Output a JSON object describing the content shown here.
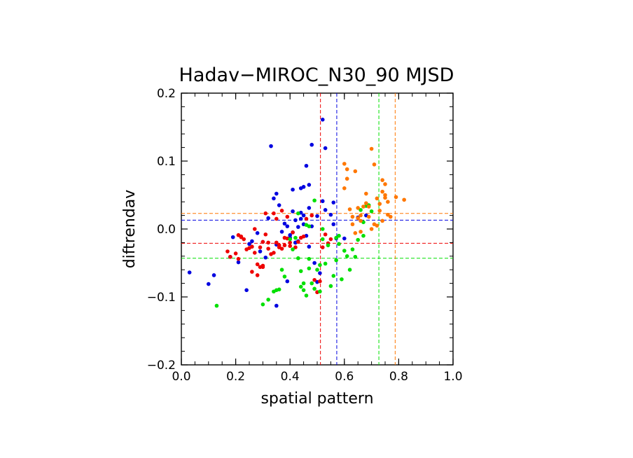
{
  "chart_data": {
    "type": "scatter",
    "title": "Hadav−MIROC_N30_90 MJSD",
    "xlabel": "spatial pattern",
    "ylabel": "diftrendav",
    "xlim": [
      0.0,
      1.0
    ],
    "ylim": [
      -0.2,
      0.2
    ],
    "xticks": [
      0.0,
      0.2,
      0.4,
      0.6,
      0.8,
      1.0
    ],
    "xtick_labels": [
      "0.0",
      "0.2",
      "0.4",
      "0.6",
      "0.8",
      "1.0"
    ],
    "yticks": [
      -0.2,
      -0.1,
      0.0,
      0.1,
      0.2
    ],
    "ytick_labels": [
      "−0.2",
      "−0.1",
      "0.0",
      "0.1",
      "0.2"
    ],
    "grid": false,
    "series": [
      {
        "color": "#0000e0",
        "mean_x": 0.572,
        "mean_y": 0.013,
        "points": [
          [
            0.03,
            -0.064
          ],
          [
            0.1,
            -0.081
          ],
          [
            0.12,
            -0.068
          ],
          [
            0.18,
            -0.041
          ],
          [
            0.19,
            -0.012
          ],
          [
            0.21,
            -0.049
          ],
          [
            0.24,
            -0.09
          ],
          [
            0.25,
            -0.022
          ],
          [
            0.26,
            -0.018
          ],
          [
            0.28,
            -0.006
          ],
          [
            0.29,
            -0.033
          ],
          [
            0.3,
            -0.019
          ],
          [
            0.31,
            -0.042
          ],
          [
            0.32,
            0.016
          ],
          [
            0.33,
            0.122
          ],
          [
            0.34,
            0.045
          ],
          [
            0.35,
            -0.023
          ],
          [
            0.35,
            0.052
          ],
          [
            0.35,
            -0.113
          ],
          [
            0.36,
            0.035
          ],
          [
            0.37,
            -0.004
          ],
          [
            0.38,
            0.008
          ],
          [
            0.39,
            0.004
          ],
          [
            0.39,
            -0.077
          ],
          [
            0.4,
            -0.009
          ],
          [
            0.4,
            -0.013
          ],
          [
            0.41,
            0.026
          ],
          [
            0.41,
            0.058
          ],
          [
            0.41,
            -0.005
          ],
          [
            0.42,
            0.013
          ],
          [
            0.42,
            -0.02
          ],
          [
            0.42,
            -0.02
          ],
          [
            0.43,
            0.003
          ],
          [
            0.43,
            -0.018
          ],
          [
            0.44,
            0.015
          ],
          [
            0.44,
            0.06
          ],
          [
            0.44,
            0.024
          ],
          [
            0.45,
            0.02
          ],
          [
            0.45,
            0.007
          ],
          [
            0.45,
            0.062
          ],
          [
            0.46,
            0.093
          ],
          [
            0.46,
            -0.01
          ],
          [
            0.47,
            0.065
          ],
          [
            0.47,
            0.031
          ],
          [
            0.47,
            -0.026
          ],
          [
            0.48,
            0.124
          ],
          [
            0.48,
            0.004
          ],
          [
            0.49,
            -0.05
          ],
          [
            0.5,
            -0.078
          ],
          [
            0.5,
            0.019
          ],
          [
            0.51,
            -0.065
          ],
          [
            0.52,
            0.041
          ],
          [
            0.52,
            0.161
          ],
          [
            0.53,
            0.119
          ],
          [
            0.53,
            0.028
          ],
          [
            0.55,
            0.021
          ],
          [
            0.56,
            0.007
          ],
          [
            0.56,
            0.039
          ],
          [
            0.57,
            -0.014
          ],
          [
            0.6,
            -0.014
          ],
          [
            0.65,
            0.017
          ],
          [
            0.68,
            0.02
          ]
        ]
      },
      {
        "color": "#ee0000",
        "mean_x": 0.512,
        "mean_y": -0.021,
        "points": [
          [
            0.17,
            -0.033
          ],
          [
            0.18,
            -0.041
          ],
          [
            0.2,
            -0.036
          ],
          [
            0.21,
            -0.009
          ],
          [
            0.21,
            -0.044
          ],
          [
            0.22,
            -0.011
          ],
          [
            0.22,
            -0.012
          ],
          [
            0.23,
            -0.015
          ],
          [
            0.24,
            -0.03
          ],
          [
            0.25,
            -0.028
          ],
          [
            0.26,
            -0.026
          ],
          [
            0.26,
            -0.063
          ],
          [
            0.27,
            -0.035
          ],
          [
            0.27,
            0.0
          ],
          [
            0.28,
            -0.052
          ],
          [
            0.28,
            -0.068
          ],
          [
            0.29,
            -0.056
          ],
          [
            0.29,
            -0.027
          ],
          [
            0.3,
            -0.019
          ],
          [
            0.3,
            -0.056
          ],
          [
            0.3,
            -0.054
          ],
          [
            0.31,
            0.023
          ],
          [
            0.31,
            -0.008
          ],
          [
            0.32,
            -0.02
          ],
          [
            0.32,
            -0.029
          ],
          [
            0.33,
            -0.037
          ],
          [
            0.34,
            0.023
          ],
          [
            0.34,
            -0.035
          ],
          [
            0.35,
            -0.02
          ],
          [
            0.35,
            0.015
          ],
          [
            0.36,
            -0.027
          ],
          [
            0.36,
            -0.024
          ],
          [
            0.37,
            -0.029
          ],
          [
            0.37,
            0.027
          ],
          [
            0.38,
            -0.024
          ],
          [
            0.38,
            -0.013
          ],
          [
            0.39,
            0.018
          ],
          [
            0.39,
            -0.014
          ],
          [
            0.4,
            -0.025
          ],
          [
            0.4,
            -0.02
          ],
          [
            0.41,
            -0.005
          ],
          [
            0.42,
            -0.027
          ],
          [
            0.43,
            -0.019
          ],
          [
            0.44,
            -0.013
          ],
          [
            0.45,
            -0.011
          ],
          [
            0.46,
            0.015
          ],
          [
            0.48,
            0.02
          ],
          [
            0.49,
            -0.075
          ],
          [
            0.5,
            -0.093
          ],
          [
            0.51,
            -0.077
          ],
          [
            0.52,
            -0.027
          ],
          [
            0.53,
            -0.008
          ],
          [
            0.54,
            -0.021
          ],
          [
            0.55,
            -0.015
          ]
        ]
      },
      {
        "color": "#00e000",
        "mean_x": 0.727,
        "mean_y": -0.043,
        "points": [
          [
            0.13,
            -0.113
          ],
          [
            0.3,
            -0.111
          ],
          [
            0.32,
            -0.104
          ],
          [
            0.34,
            -0.092
          ],
          [
            0.35,
            -0.09
          ],
          [
            0.36,
            -0.089
          ],
          [
            0.37,
            -0.06
          ],
          [
            0.38,
            -0.07
          ],
          [
            0.4,
            -0.015
          ],
          [
            0.41,
            -0.03
          ],
          [
            0.42,
            -0.013
          ],
          [
            0.43,
            0.023
          ],
          [
            0.43,
            -0.043
          ],
          [
            0.44,
            -0.085
          ],
          [
            0.44,
            -0.062
          ],
          [
            0.45,
            -0.08
          ],
          [
            0.45,
            -0.09
          ],
          [
            0.46,
            -0.098
          ],
          [
            0.46,
            0.006
          ],
          [
            0.47,
            0.004
          ],
          [
            0.47,
            -0.044
          ],
          [
            0.47,
            -0.058
          ],
          [
            0.48,
            -0.08
          ],
          [
            0.49,
            0.042
          ],
          [
            0.49,
            -0.088
          ],
          [
            0.5,
            -0.06
          ],
          [
            0.51,
            -0.053
          ],
          [
            0.51,
            -0.092
          ],
          [
            0.52,
            -0.015
          ],
          [
            0.52,
            0.0
          ],
          [
            0.53,
            -0.051
          ],
          [
            0.54,
            -0.024
          ],
          [
            0.55,
            -0.084
          ],
          [
            0.56,
            -0.069
          ],
          [
            0.57,
            -0.013
          ],
          [
            0.57,
            -0.046
          ],
          [
            0.58,
            -0.01
          ],
          [
            0.58,
            -0.022
          ],
          [
            0.59,
            -0.074
          ],
          [
            0.6,
            -0.032
          ],
          [
            0.61,
            -0.04
          ],
          [
            0.62,
            -0.06
          ],
          [
            0.63,
            -0.03
          ],
          [
            0.64,
            -0.041
          ],
          [
            0.65,
            -0.016
          ],
          [
            0.66,
            0.028
          ],
          [
            0.67,
            0.01
          ],
          [
            0.67,
            -0.01
          ],
          [
            0.68,
            0.034
          ],
          [
            0.69,
            0.035
          ],
          [
            0.7,
            0.026
          ]
        ]
      },
      {
        "color": "#ff7700",
        "mean_x": 0.787,
        "mean_y": 0.023,
        "points": [
          [
            0.6,
            0.096
          ],
          [
            0.6,
            0.06
          ],
          [
            0.61,
            0.088
          ],
          [
            0.61,
            0.074
          ],
          [
            0.62,
            0.029
          ],
          [
            0.63,
            0.018
          ],
          [
            0.63,
            0.007
          ],
          [
            0.64,
            0.085
          ],
          [
            0.64,
            -0.006
          ],
          [
            0.65,
            0.016
          ],
          [
            0.65,
            0.031
          ],
          [
            0.66,
            0.02
          ],
          [
            0.66,
            0.012
          ],
          [
            0.66,
            -0.004
          ],
          [
            0.67,
            0.033
          ],
          [
            0.68,
            0.052
          ],
          [
            0.68,
            0.038
          ],
          [
            0.69,
            0.033
          ],
          [
            0.69,
            0.018
          ],
          [
            0.7,
            0.118
          ],
          [
            0.7,
            0.0
          ],
          [
            0.71,
            0.095
          ],
          [
            0.71,
            0.007
          ],
          [
            0.72,
            0.045
          ],
          [
            0.72,
            0.005
          ],
          [
            0.73,
            0.027
          ],
          [
            0.73,
            0.037
          ],
          [
            0.74,
            0.072
          ],
          [
            0.74,
            0.055
          ],
          [
            0.74,
            0.012
          ],
          [
            0.75,
            0.05
          ],
          [
            0.75,
            0.066
          ],
          [
            0.75,
            0.046
          ],
          [
            0.76,
            0.04
          ],
          [
            0.76,
            0.021
          ],
          [
            0.77,
            0.018
          ],
          [
            0.79,
            0.047
          ],
          [
            0.82,
            0.043
          ]
        ]
      }
    ]
  }
}
